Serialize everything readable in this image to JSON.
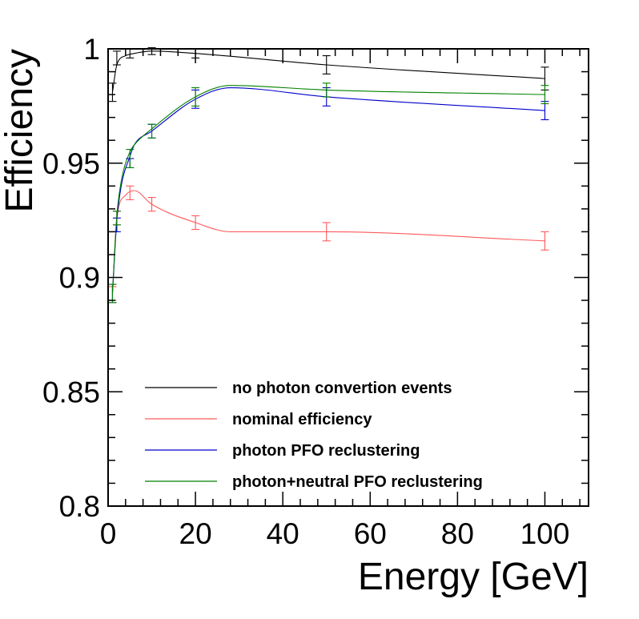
{
  "chart_data": {
    "type": "line",
    "xlabel": "Energy [GeV]",
    "ylabel": "Efficiency",
    "xlim": [
      0,
      110
    ],
    "ylim": [
      0.8,
      1.0
    ],
    "x_ticks": [
      0,
      20,
      40,
      60,
      80,
      100
    ],
    "x_tick_labels": [
      "0",
      "20",
      "40",
      "60",
      "80",
      "100"
    ],
    "y_ticks": [
      0.8,
      0.85,
      0.9,
      0.95,
      1.0
    ],
    "y_tick_labels": [
      "0.8",
      "0.85",
      "0.9",
      "0.95",
      "1"
    ],
    "grid": false,
    "legend_position": "bottom-center",
    "series": [
      {
        "name": "no photon convertion events",
        "color": "#000000",
        "points": [
          {
            "x": 1,
            "y": 0.981,
            "err": 0.004
          },
          {
            "x": 2,
            "y": 0.996,
            "err": 0.003
          },
          {
            "x": 5,
            "y": 0.998,
            "err": 0.002
          },
          {
            "x": 10,
            "y": 0.999,
            "err": 0.0015
          },
          {
            "x": 20,
            "y": 0.998,
            "err": 0.002
          },
          {
            "x": 50,
            "y": 0.993,
            "err": 0.004
          },
          {
            "x": 100,
            "y": 0.987,
            "err": 0.005
          }
        ],
        "curve": [
          [
            1,
            0.981
          ],
          [
            2,
            0.993
          ],
          [
            4,
            0.997
          ],
          [
            6,
            0.998
          ],
          [
            10,
            0.999
          ],
          [
            20,
            0.998
          ],
          [
            50,
            0.993
          ],
          [
            100,
            0.987
          ]
        ]
      },
      {
        "name": "nominal efficiency",
        "color": "#ff5a5a",
        "points": [
          {
            "x": 1,
            "y": 0.893,
            "err": 0.003
          },
          {
            "x": 2,
            "y": 0.926,
            "err": 0.003
          },
          {
            "x": 5,
            "y": 0.937,
            "err": 0.003
          },
          {
            "x": 10,
            "y": 0.932,
            "err": 0.003
          },
          {
            "x": 20,
            "y": 0.924,
            "err": 0.003
          },
          {
            "x": 50,
            "y": 0.92,
            "err": 0.004
          },
          {
            "x": 100,
            "y": 0.916,
            "err": 0.004
          }
        ],
        "curve": [
          [
            1,
            0.893
          ],
          [
            2,
            0.926
          ],
          [
            4,
            0.936
          ],
          [
            6,
            0.938
          ],
          [
            10,
            0.932
          ],
          [
            20,
            0.924
          ],
          [
            28,
            0.92
          ],
          [
            50,
            0.92
          ],
          [
            100,
            0.916
          ]
        ]
      },
      {
        "name": "photon PFO reclustering",
        "color": "#0000cc",
        "points": [
          {
            "x": 1,
            "y": 0.893,
            "err": 0.004
          },
          {
            "x": 2,
            "y": 0.923,
            "err": 0.003
          },
          {
            "x": 5,
            "y": 0.95,
            "err": 0.002
          },
          {
            "x": 10,
            "y": 0.964,
            "err": 0.003
          },
          {
            "x": 20,
            "y": 0.978,
            "err": 0.004
          },
          {
            "x": 50,
            "y": 0.979,
            "err": 0.004
          },
          {
            "x": 100,
            "y": 0.973,
            "err": 0.004
          }
        ],
        "curve": [
          [
            1,
            0.893
          ],
          [
            2,
            0.925
          ],
          [
            3,
            0.94
          ],
          [
            5,
            0.953
          ],
          [
            6,
            0.958
          ],
          [
            10,
            0.964
          ],
          [
            20,
            0.978
          ],
          [
            28,
            0.983
          ],
          [
            50,
            0.979
          ],
          [
            100,
            0.973
          ]
        ]
      },
      {
        "name": "photon+neutral PFO reclustering",
        "color": "#008000",
        "points": [
          {
            "x": 1,
            "y": 0.893,
            "err": 0.004
          },
          {
            "x": 2,
            "y": 0.926,
            "err": 0.003
          },
          {
            "x": 5,
            "y": 0.952,
            "err": 0.004
          },
          {
            "x": 10,
            "y": 0.964,
            "err": 0.003
          },
          {
            "x": 20,
            "y": 0.979,
            "err": 0.004
          },
          {
            "x": 50,
            "y": 0.982,
            "err": 0.003
          },
          {
            "x": 100,
            "y": 0.98,
            "err": 0.004
          }
        ],
        "curve": [
          [
            1,
            0.893
          ],
          [
            2,
            0.927
          ],
          [
            3,
            0.942
          ],
          [
            5,
            0.955
          ],
          [
            6,
            0.958
          ],
          [
            10,
            0.965
          ],
          [
            20,
            0.979
          ],
          [
            28,
            0.984
          ],
          [
            50,
            0.982
          ],
          [
            100,
            0.98
          ]
        ]
      }
    ]
  }
}
